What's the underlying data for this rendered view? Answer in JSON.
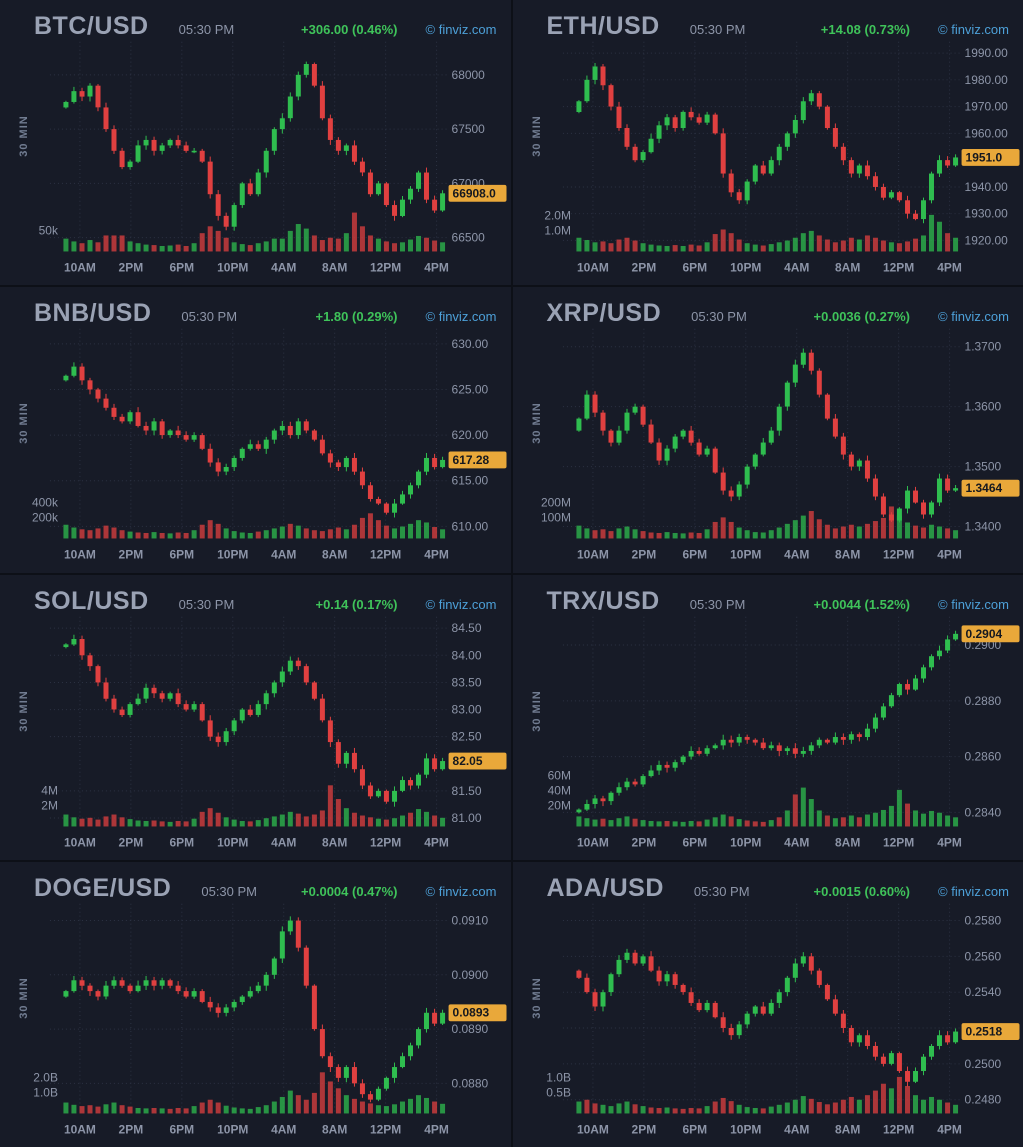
{
  "page": {
    "source_credit": "© finviz.com",
    "quote_time": "05:30 PM",
    "timeframe": "30 MIN"
  },
  "colors": {
    "seam": "#0d1017",
    "panel_background": "#171b27",
    "title_text": "#9aa2b4",
    "axis_text": "#8d95a8",
    "change_text": "#3fc35a",
    "credit_text": "#4da0d8",
    "grid": "#2c3243",
    "candle_up": "#2fbd4f",
    "candle_down": "#e04040",
    "last_price_badge": "#e9a83a"
  },
  "x_labels": [
    "10AM",
    "2PM",
    "6PM",
    "10PM",
    "4AM",
    "8AM",
    "12PM",
    "4PM"
  ],
  "chart_data": [
    {
      "type": "candlestick",
      "symbol": "BTC/USD",
      "timeframe": "30 MIN",
      "time": "05:30 PM",
      "change": "+306.00 (0.46%)",
      "credit": "© finviz.com",
      "last_price": 66908.0,
      "last_price_label": "66908.0",
      "y_min": 66400,
      "y_max": 68250,
      "y_ticks": [
        {
          "value": 68000,
          "label": "68000"
        },
        {
          "value": 67500,
          "label": "67500"
        },
        {
          "value": 67000,
          "label": "67000"
        },
        {
          "value": 66500,
          "label": "66500"
        }
      ],
      "volume_axis_labels": [
        "50k"
      ],
      "closes": [
        67750,
        67850,
        67800,
        67900,
        67700,
        67500,
        67300,
        67150,
        67200,
        67350,
        67400,
        67300,
        67350,
        67400,
        67350,
        67300,
        67300,
        67200,
        66900,
        66700,
        66600,
        66800,
        67000,
        66900,
        67100,
        67300,
        67500,
        67600,
        67800,
        68000,
        68100,
        67900,
        67600,
        67400,
        67300,
        67350,
        67200,
        67100,
        66900,
        67000,
        66800,
        66700,
        66850,
        66950,
        67100,
        66850,
        66750,
        66908
      ],
      "volumes_relative": [
        28,
        22,
        18,
        25,
        20,
        35,
        35,
        35,
        22,
        18,
        15,
        14,
        12,
        13,
        15,
        12,
        18,
        40,
        55,
        45,
        30,
        20,
        16,
        14,
        18,
        22,
        28,
        28,
        45,
        60,
        50,
        35,
        25,
        30,
        28,
        40,
        85,
        55,
        35,
        28,
        22,
        18,
        20,
        26,
        34,
        30,
        24,
        20
      ]
    },
    {
      "type": "candlestick",
      "symbol": "ETH/USD",
      "timeframe": "30 MIN",
      "time": "05:30 PM",
      "change": "+14.08 (0.73%)",
      "credit": "© finviz.com",
      "last_price": 1951.0,
      "last_price_label": "1951.0",
      "y_min": 1917,
      "y_max": 1992,
      "y_ticks": [
        {
          "value": 1990,
          "label": "1990.00"
        },
        {
          "value": 1980,
          "label": "1980.00"
        },
        {
          "value": 1970,
          "label": "1970.00"
        },
        {
          "value": 1960,
          "label": "1960.00"
        },
        {
          "value": 1940,
          "label": "1940.00"
        },
        {
          "value": 1930,
          "label": "1930.00"
        },
        {
          "value": 1920,
          "label": "1920.00"
        }
      ],
      "volume_axis_labels": [
        "2.0M",
        "1.0M"
      ],
      "closes": [
        1972,
        1980,
        1985,
        1978,
        1970,
        1962,
        1955,
        1950,
        1953,
        1958,
        1963,
        1966,
        1962,
        1968,
        1966,
        1964,
        1967,
        1960,
        1945,
        1938,
        1935,
        1942,
        1948,
        1945,
        1950,
        1955,
        1960,
        1965,
        1972,
        1975,
        1970,
        1962,
        1955,
        1950,
        1945,
        1948,
        1944,
        1940,
        1936,
        1938,
        1935,
        1930,
        1928,
        1935,
        1945,
        1950,
        1948,
        1951
      ],
      "volumes_relative": [
        30,
        25,
        20,
        22,
        18,
        26,
        30,
        24,
        18,
        15,
        13,
        12,
        14,
        12,
        15,
        13,
        20,
        38,
        48,
        40,
        26,
        18,
        15,
        13,
        16,
        20,
        24,
        30,
        40,
        45,
        35,
        26,
        20,
        24,
        30,
        26,
        35,
        30,
        24,
        20,
        18,
        22,
        28,
        35,
        80,
        65,
        40,
        30
      ]
    },
    {
      "type": "candlestick",
      "symbol": "BNB/USD",
      "timeframe": "30 MIN",
      "time": "05:30 PM",
      "change": "+1.80 (0.29%)",
      "credit": "© finviz.com",
      "last_price": 617.28,
      "last_price_label": "617.28",
      "y_min": 609,
      "y_max": 631,
      "y_ticks": [
        {
          "value": 630,
          "label": "630.00"
        },
        {
          "value": 625,
          "label": "625.00"
        },
        {
          "value": 620,
          "label": "620.00"
        },
        {
          "value": 615,
          "label": "615.00"
        },
        {
          "value": 610,
          "label": "610.00"
        }
      ],
      "volume_axis_labels": [
        "400k",
        "200k"
      ],
      "closes": [
        626.5,
        627.5,
        626.0,
        625.0,
        624.0,
        623.0,
        622.0,
        621.5,
        622.5,
        621.0,
        620.5,
        621.5,
        620.0,
        620.5,
        620.0,
        619.5,
        620.0,
        618.5,
        617.0,
        616.0,
        616.5,
        617.5,
        618.5,
        619.0,
        618.5,
        619.5,
        620.5,
        621.0,
        620.0,
        621.5,
        620.5,
        619.5,
        618.0,
        617.0,
        616.5,
        617.5,
        616.0,
        614.5,
        613.0,
        612.5,
        611.5,
        612.5,
        613.5,
        614.5,
        616.0,
        617.5,
        616.5,
        617.28
      ],
      "volumes_relative": [
        30,
        24,
        20,
        18,
        22,
        28,
        24,
        18,
        15,
        13,
        12,
        14,
        12,
        11,
        13,
        12,
        18,
        30,
        40,
        32,
        22,
        16,
        13,
        12,
        15,
        18,
        22,
        26,
        32,
        28,
        22,
        18,
        16,
        20,
        24,
        20,
        30,
        45,
        55,
        40,
        28,
        22,
        26,
        32,
        40,
        35,
        25,
        20
      ]
    },
    {
      "type": "candlestick",
      "symbol": "XRP/USD",
      "timeframe": "30 MIN",
      "time": "05:30 PM",
      "change": "+0.0036 (0.27%)",
      "credit": "© finviz.com",
      "last_price": 1.3464,
      "last_price_label": "1.3464",
      "y_min": 1.3385,
      "y_max": 1.372,
      "y_ticks": [
        {
          "value": 1.37,
          "label": "1.3700"
        },
        {
          "value": 1.36,
          "label": "1.3600"
        },
        {
          "value": 1.35,
          "label": "1.3500"
        },
        {
          "value": 1.34,
          "label": "1.3400"
        }
      ],
      "volume_axis_labels": [
        "200M",
        "100M"
      ],
      "closes": [
        1.358,
        1.362,
        1.359,
        1.356,
        1.354,
        1.356,
        1.359,
        1.36,
        1.357,
        1.354,
        1.351,
        1.353,
        1.355,
        1.356,
        1.354,
        1.352,
        1.353,
        1.349,
        1.346,
        1.345,
        1.347,
        1.35,
        1.352,
        1.354,
        1.356,
        1.36,
        1.364,
        1.367,
        1.369,
        1.366,
        1.362,
        1.358,
        1.355,
        1.352,
        1.35,
        1.351,
        1.348,
        1.345,
        1.342,
        1.341,
        1.343,
        1.346,
        1.344,
        1.342,
        1.344,
        1.348,
        1.346,
        1.3464
      ],
      "volumes_relative": [
        28,
        22,
        18,
        20,
        16,
        22,
        26,
        20,
        16,
        13,
        12,
        14,
        12,
        11,
        13,
        12,
        20,
        36,
        46,
        36,
        24,
        18,
        14,
        13,
        18,
        24,
        32,
        40,
        50,
        60,
        42,
        30,
        22,
        26,
        30,
        26,
        32,
        38,
        45,
        70,
        50,
        35,
        28,
        24,
        30,
        26,
        22,
        18
      ]
    },
    {
      "type": "candlestick",
      "symbol": "SOL/USD",
      "timeframe": "30 MIN",
      "time": "05:30 PM",
      "change": "+0.14 (0.17%)",
      "credit": "© finviz.com",
      "last_price": 82.05,
      "last_price_label": "82.05",
      "y_min": 80.9,
      "y_max": 84.6,
      "y_ticks": [
        {
          "value": 84.5,
          "label": "84.50"
        },
        {
          "value": 84.0,
          "label": "84.00"
        },
        {
          "value": 83.5,
          "label": "83.50"
        },
        {
          "value": 83.0,
          "label": "83.00"
        },
        {
          "value": 82.5,
          "label": "82.50"
        },
        {
          "value": 81.5,
          "label": "81.50"
        },
        {
          "value": 81.0,
          "label": "81.00"
        }
      ],
      "volume_axis_labels": [
        "4M",
        "2M"
      ],
      "closes": [
        84.2,
        84.3,
        84.0,
        83.8,
        83.5,
        83.2,
        83.0,
        82.9,
        83.1,
        83.2,
        83.4,
        83.3,
        83.2,
        83.3,
        83.1,
        83.0,
        83.1,
        82.8,
        82.5,
        82.4,
        82.6,
        82.8,
        83.0,
        82.9,
        83.1,
        83.3,
        83.5,
        83.7,
        83.9,
        83.8,
        83.5,
        83.2,
        82.8,
        82.4,
        82.0,
        82.2,
        81.9,
        81.6,
        81.4,
        81.5,
        81.3,
        81.5,
        81.7,
        81.6,
        81.8,
        82.1,
        81.9,
        82.05
      ],
      "volumes_relative": [
        26,
        20,
        17,
        19,
        15,
        22,
        26,
        20,
        16,
        13,
        12,
        13,
        11,
        10,
        12,
        11,
        17,
        32,
        40,
        30,
        20,
        15,
        12,
        11,
        14,
        18,
        22,
        26,
        32,
        28,
        22,
        26,
        35,
        90,
        60,
        40,
        30,
        24,
        20,
        17,
        15,
        18,
        24,
        30,
        38,
        32,
        24,
        19
      ]
    },
    {
      "type": "candlestick",
      "symbol": "TRX/USD",
      "timeframe": "30 MIN",
      "time": "05:30 PM",
      "change": "+0.0044 (1.52%)",
      "credit": "© finviz.com",
      "last_price": 0.2904,
      "last_price_label": "0.2904",
      "y_min": 0.2836,
      "y_max": 0.2908,
      "y_ticks": [
        {
          "value": 0.29,
          "label": "0.2900"
        },
        {
          "value": 0.288,
          "label": "0.2880"
        },
        {
          "value": 0.286,
          "label": "0.2860"
        },
        {
          "value": 0.284,
          "label": "0.2840"
        }
      ],
      "volume_axis_labels": [
        "60M",
        "40M",
        "20M"
      ],
      "closes": [
        0.2841,
        0.2843,
        0.2845,
        0.2844,
        0.2847,
        0.2849,
        0.2851,
        0.285,
        0.2853,
        0.2855,
        0.2857,
        0.2856,
        0.2858,
        0.286,
        0.2862,
        0.2861,
        0.2863,
        0.2864,
        0.2866,
        0.2865,
        0.2867,
        0.2866,
        0.2865,
        0.2863,
        0.2864,
        0.2862,
        0.2863,
        0.2861,
        0.2862,
        0.2864,
        0.2866,
        0.2865,
        0.2867,
        0.2866,
        0.2868,
        0.2867,
        0.287,
        0.2874,
        0.2878,
        0.2882,
        0.2886,
        0.2884,
        0.2888,
        0.2892,
        0.2896,
        0.2898,
        0.2902,
        0.2904
      ],
      "volumes_relative": [
        22,
        18,
        15,
        17,
        14,
        18,
        22,
        17,
        14,
        12,
        11,
        12,
        11,
        10,
        12,
        11,
        15,
        20,
        26,
        22,
        16,
        13,
        11,
        10,
        14,
        20,
        35,
        70,
        85,
        60,
        35,
        24,
        18,
        20,
        24,
        20,
        26,
        30,
        36,
        45,
        80,
        50,
        35,
        28,
        34,
        30,
        24,
        20
      ]
    },
    {
      "type": "candlestick",
      "symbol": "DOGE/USD",
      "timeframe": "30 MIN",
      "time": "05:30 PM",
      "change": "+0.0004 (0.47%)",
      "credit": "© finviz.com",
      "last_price": 0.0893,
      "last_price_label": "0.0893",
      "y_min": 0.0875,
      "y_max": 0.0912,
      "y_ticks": [
        {
          "value": 0.091,
          "label": "0.0910"
        },
        {
          "value": 0.09,
          "label": "0.0900"
        },
        {
          "value": 0.089,
          "label": "0.0890"
        },
        {
          "value": 0.088,
          "label": "0.0880"
        }
      ],
      "volume_axis_labels": [
        "2.0B",
        "1.0B"
      ],
      "closes": [
        0.0897,
        0.0899,
        0.0898,
        0.0897,
        0.0896,
        0.0898,
        0.0899,
        0.0898,
        0.0897,
        0.0898,
        0.0899,
        0.0898,
        0.0899,
        0.0898,
        0.0897,
        0.0896,
        0.0897,
        0.0895,
        0.0894,
        0.0893,
        0.0894,
        0.0895,
        0.0896,
        0.0897,
        0.0898,
        0.09,
        0.0903,
        0.0908,
        0.091,
        0.0905,
        0.0898,
        0.089,
        0.0885,
        0.0883,
        0.0881,
        0.0883,
        0.088,
        0.0878,
        0.0877,
        0.0879,
        0.0881,
        0.0883,
        0.0885,
        0.0887,
        0.089,
        0.0893,
        0.0891,
        0.0893
      ],
      "volumes_relative": [
        24,
        19,
        16,
        18,
        15,
        20,
        24,
        18,
        15,
        12,
        11,
        12,
        11,
        10,
        12,
        11,
        16,
        24,
        30,
        24,
        17,
        13,
        11,
        10,
        14,
        18,
        26,
        36,
        50,
        40,
        30,
        45,
        90,
        70,
        55,
        40,
        32,
        26,
        22,
        18,
        16,
        20,
        26,
        32,
        40,
        34,
        26,
        21
      ]
    },
    {
      "type": "candlestick",
      "symbol": "ADA/USD",
      "timeframe": "30 MIN",
      "time": "05:30 PM",
      "change": "+0.0015 (0.60%)",
      "credit": "© finviz.com",
      "last_price": 0.2518,
      "last_price_label": "0.2518",
      "y_min": 0.2474,
      "y_max": 0.2586,
      "y_ticks": [
        {
          "value": 0.258,
          "label": "0.2580"
        },
        {
          "value": 0.256,
          "label": "0.2560"
        },
        {
          "value": 0.254,
          "label": "0.2540"
        },
        {
          "value": 0.252,
          "label": "0.2520"
        },
        {
          "value": 0.25,
          "label": "0.2500"
        },
        {
          "value": 0.248,
          "label": "0.2480"
        }
      ],
      "volume_axis_labels": [
        "1.0B",
        "0.5B"
      ],
      "closes": [
        0.2548,
        0.254,
        0.2532,
        0.254,
        0.255,
        0.2558,
        0.2562,
        0.2556,
        0.256,
        0.2552,
        0.2546,
        0.255,
        0.2544,
        0.254,
        0.2534,
        0.253,
        0.2534,
        0.2526,
        0.252,
        0.2516,
        0.2522,
        0.2528,
        0.2532,
        0.2528,
        0.2534,
        0.254,
        0.2548,
        0.2556,
        0.256,
        0.2552,
        0.2544,
        0.2536,
        0.2528,
        0.252,
        0.2512,
        0.2516,
        0.251,
        0.2504,
        0.25,
        0.2506,
        0.2496,
        0.249,
        0.2496,
        0.2504,
        0.251,
        0.2516,
        0.2512,
        0.2518
      ],
      "volumes_relative": [
        26,
        30,
        22,
        19,
        16,
        22,
        26,
        20,
        16,
        13,
        12,
        13,
        11,
        10,
        12,
        11,
        16,
        26,
        34,
        27,
        19,
        14,
        12,
        11,
        15,
        19,
        24,
        30,
        38,
        32,
        25,
        20,
        24,
        30,
        36,
        30,
        40,
        50,
        65,
        55,
        80,
        60,
        40,
        30,
        36,
        30,
        24,
        19
      ]
    }
  ]
}
